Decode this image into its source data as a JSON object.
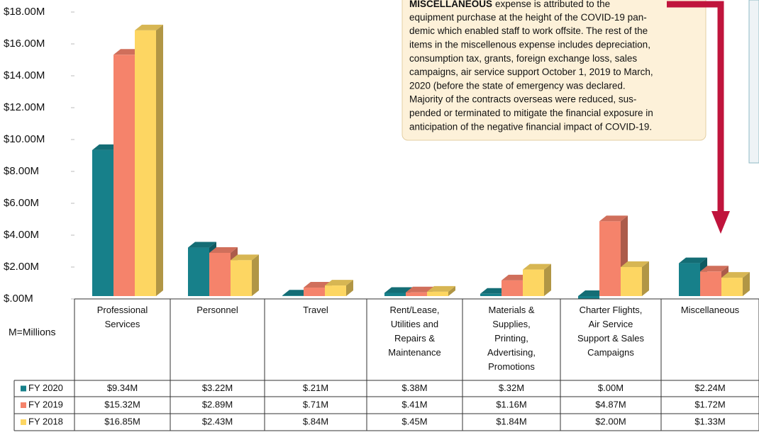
{
  "chart_data": {
    "type": "bar3d",
    "unit_note": "M=Millions",
    "categories": [
      "Professional\nServices",
      "Personnel",
      "Travel",
      "Rent/Lease,\nUtilities and\nRepairs &\nMaintenance",
      "Materials &\nSupplies,\nPrinting,\nAdvertising,\nPromotions",
      "Charter Flights,\nAir Service\nSupport & Sales\nCampaigns",
      "Miscellaneous"
    ],
    "series": [
      {
        "name": "FY 2020",
        "color": "#17808a",
        "values": [
          9.34,
          3.22,
          0.21,
          0.38,
          0.32,
          0.0,
          2.24
        ],
        "value_labels": [
          "$9.34M",
          "$3.22M",
          "$.21M",
          "$.38M",
          "$.32M",
          "$.00M",
          "$2.24M"
        ]
      },
      {
        "name": "FY 2019",
        "color": "#f5836b",
        "values": [
          15.32,
          2.89,
          0.71,
          0.41,
          1.16,
          4.87,
          1.72
        ],
        "value_labels": [
          "$15.32M",
          "$2.89M",
          "$.71M",
          "$.41M",
          "$1.16M",
          "$4.87M",
          "$1.72M"
        ]
      },
      {
        "name": "FY 2018",
        "color": "#fdd662",
        "values": [
          16.85,
          2.43,
          0.84,
          0.45,
          1.84,
          2.0,
          1.33
        ],
        "value_labels": [
          "$16.85M",
          "$2.43M",
          "$.84M",
          "$.45M",
          "$1.84M",
          "$2.00M",
          "$1.33M"
        ]
      }
    ],
    "ylim": [
      0,
      18
    ],
    "yticks": [
      {
        "value": 0,
        "label": "$.00M"
      },
      {
        "value": 2,
        "label": "$2.00M"
      },
      {
        "value": 4,
        "label": "$4.00M"
      },
      {
        "value": 6,
        "label": "$6.00M"
      },
      {
        "value": 8,
        "label": "$8.00M"
      },
      {
        "value": 10,
        "label": "$10.00M"
      },
      {
        "value": 12,
        "label": "$12.00M"
      },
      {
        "value": 14,
        "label": "$14.00M"
      },
      {
        "value": 16,
        "label": "$16.00M"
      },
      {
        "value": 18,
        "label": "$18.00M"
      }
    ],
    "annotation": {
      "bold": "MISCELLANEOUS",
      "lines": [
        "expense is attributed to the",
        "equipment purchase at the height of the COVID-19 pan-",
        "demic which enabled staff to work offsite. The rest of the",
        "items in the miscellenous expense includes depreciation,",
        "consumption tax, grants, foreign exchange loss, sales",
        "campaigns, air service support October 1, 2019 to March,",
        "2020 (before the state of emergency was declared.",
        "Majority of the contracts overseas were reduced, sus-",
        "pended or terminated to mitigate the financial exposure in",
        "anticipation of the negative financial impact of COVID-19."
      ]
    }
  }
}
